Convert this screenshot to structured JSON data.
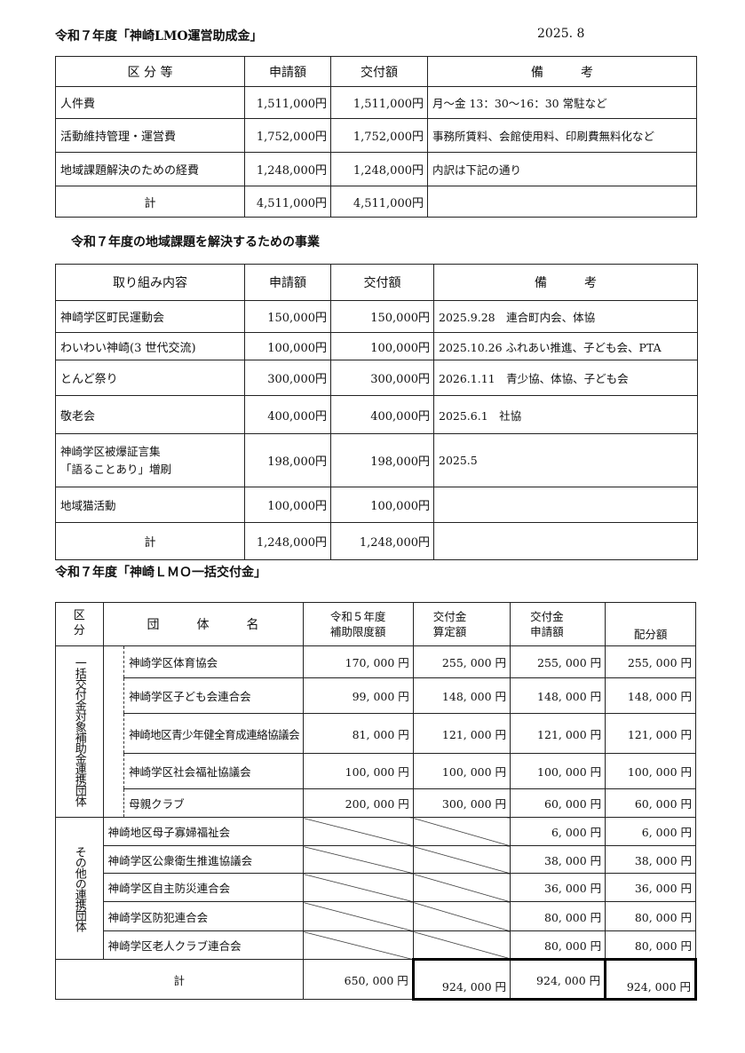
{
  "section1": {
    "title": "令和７年度「神崎LMO運営助成金」",
    "date": "2025. 8",
    "headers": [
      "区 分 等",
      "申請額",
      "交付額",
      "備　　　考"
    ],
    "rows": [
      {
        "category": "人件費",
        "applied": "1,511,000円",
        "granted": "1,511,000円",
        "note": "月～金 13：30～16：30 常駐など"
      },
      {
        "category": "活動維持管理・運営費",
        "applied": "1,752,000円",
        "granted": "1,752,000円",
        "note": "事務所賃料、会館使用料、印刷費無料化など"
      },
      {
        "category": "地域課題解決のための経費",
        "applied": "1,248,000円",
        "granted": "1,248,000円",
        "note": "内訳は下記の通り"
      }
    ],
    "total": {
      "label": "計",
      "applied": "4,511,000円",
      "granted": "4,511,000円"
    }
  },
  "section2": {
    "title": "令和７年度の地域課題を解決するための事業",
    "headers": [
      "取り組み内容",
      "申請額",
      "交付額",
      "備　　　考"
    ],
    "rows": [
      {
        "content": "神崎学区町民運動会",
        "applied": "150,000円",
        "granted": "150,000円",
        "note": "2025.9.28　連合町内会、体協"
      },
      {
        "content": "わいわい神崎(3 世代交流)",
        "applied": "100,000円",
        "granted": "100,000円",
        "note": "2025.10.26 ふれあい推進、子ども会、PTA"
      },
      {
        "content": "とんど祭り",
        "applied": "300,000円",
        "granted": "300,000円",
        "note": "2026.1.11　青少協、体協、子ども会"
      },
      {
        "content": "敬老会",
        "applied": "400,000円",
        "granted": "400,000円",
        "note": "2025.6.1　社協"
      },
      {
        "content": "神崎学区被爆証言集",
        "content2": "「語ることあり」増刷",
        "applied": "198,000円",
        "granted": "198,000円",
        "note": "2025.5"
      },
      {
        "content": "地域猫活動",
        "applied": "100,000円",
        "granted": "100,000円",
        "note": ""
      }
    ],
    "total": {
      "label": "計",
      "applied": "1,248,000円",
      "granted": "1,248,000円"
    }
  },
  "section3": {
    "title": "令和７年度「神崎ＬＭＯ一括交付金」",
    "headers": {
      "division": "区\n分",
      "name": "団　　　体　　　名",
      "limit": "令和５年度\n補助限度額",
      "calc": "交付金\n算定額",
      "applied": "交付金\n申請額",
      "alloc": "配分額"
    },
    "group1_label": "一括交付金対象補助金連携団体",
    "group1": [
      {
        "name": "神崎学区体育協会",
        "limit": "170, 000 円",
        "calc": "255, 000 円",
        "applied": "255, 000 円",
        "alloc": "255, 000 円"
      },
      {
        "name": "神崎学区子ども会連合会",
        "limit": "99, 000 円",
        "calc": "148, 000 円",
        "applied": "148, 000 円",
        "alloc": "148, 000 円"
      },
      {
        "name": "神崎地区青少年健全育成連絡協議会",
        "limit": "81, 000 円",
        "calc": "121, 000 円",
        "applied": "121, 000 円",
        "alloc": "121, 000 円"
      },
      {
        "name": "神崎学区社会福祉協議会",
        "limit": "100, 000 円",
        "calc": "100, 000 円",
        "applied": "100, 000 円",
        "alloc": "100, 000 円"
      },
      {
        "name": "母親クラブ",
        "limit": "200, 000 円",
        "calc": "300, 000 円",
        "applied": "60, 000 円",
        "alloc": "60, 000 円"
      }
    ],
    "group2_label": "その他の連携団体",
    "group2": [
      {
        "name": "神崎地区母子寡婦福祉会",
        "applied": "6, 000 円",
        "alloc": "6, 000 円"
      },
      {
        "name": "神崎学区公衆衛生推進協議会",
        "applied": "38, 000 円",
        "alloc": "38, 000 円"
      },
      {
        "name": "神崎学区自主防災連合会",
        "applied": "36, 000 円",
        "alloc": "36, 000 円"
      },
      {
        "name": "神崎学区防犯連合会",
        "applied": "80, 000 円",
        "alloc": "80, 000 円"
      },
      {
        "name": "神崎学区老人クラブ連合会",
        "applied": "80, 000 円",
        "alloc": "80, 000 円"
      }
    ],
    "total": {
      "label": "計",
      "limit": "650, 000 円",
      "calc": "924, 000 円",
      "applied": "924, 000 円",
      "alloc": "924, 000 円"
    }
  }
}
